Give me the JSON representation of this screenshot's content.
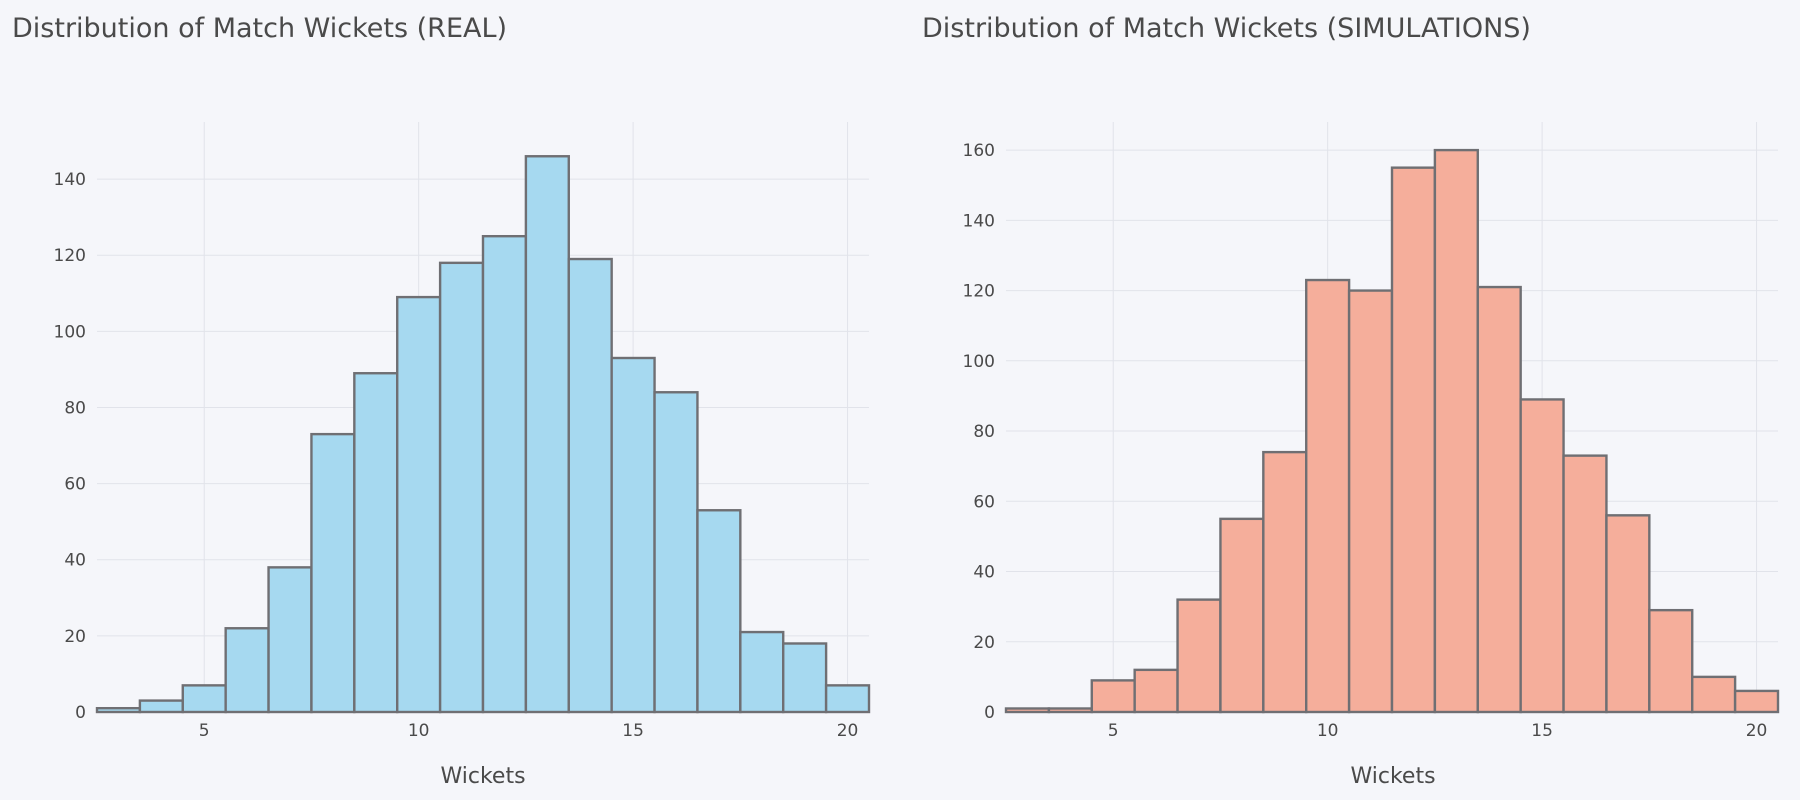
{
  "chart_data": [
    {
      "type": "bar",
      "title": "Distribution of Match Wickets (REAL)",
      "xlabel": "Wickets",
      "ylabel": "",
      "xlim": [
        2.5,
        20.5
      ],
      "ylim": [
        0,
        155
      ],
      "xticks": [
        5,
        10,
        15,
        20
      ],
      "xtick_labels": [
        "5",
        "10",
        "15",
        "20"
      ],
      "yticks": [
        0,
        20,
        40,
        60,
        80,
        100,
        120,
        140
      ],
      "ytick_labels": [
        "0",
        "20",
        "40",
        "60",
        "80",
        "100",
        "120",
        "140"
      ],
      "x": [
        3,
        4,
        5,
        6,
        7,
        8,
        9,
        10,
        11,
        12,
        13,
        14,
        15,
        16,
        17,
        18,
        19,
        20
      ],
      "values": [
        1,
        3,
        7,
        22,
        38,
        73,
        89,
        109,
        118,
        125,
        146,
        119,
        93,
        84,
        53,
        21,
        18,
        7
      ],
      "bar_color": "#a6d9f0",
      "grid": true
    },
    {
      "type": "bar",
      "title": "Distribution of Match Wickets (SIMULATIONS)",
      "xlabel": "Wickets",
      "ylabel": "",
      "xlim": [
        2.5,
        20.5
      ],
      "ylim": [
        0,
        168
      ],
      "xticks": [
        5,
        10,
        15,
        20
      ],
      "xtick_labels": [
        "5",
        "10",
        "15",
        "20"
      ],
      "yticks": [
        0,
        20,
        40,
        60,
        80,
        100,
        120,
        140,
        160
      ],
      "ytick_labels": [
        "0",
        "20",
        "40",
        "60",
        "80",
        "100",
        "120",
        "140",
        "160"
      ],
      "x": [
        3,
        4,
        5,
        6,
        7,
        8,
        9,
        10,
        11,
        12,
        13,
        14,
        15,
        16,
        17,
        18,
        19,
        20
      ],
      "values": [
        1,
        1,
        9,
        12,
        32,
        55,
        74,
        123,
        120,
        155,
        160,
        121,
        89,
        73,
        56,
        29,
        10,
        6
      ],
      "bar_color": "#f5ae9b",
      "grid": true
    }
  ]
}
